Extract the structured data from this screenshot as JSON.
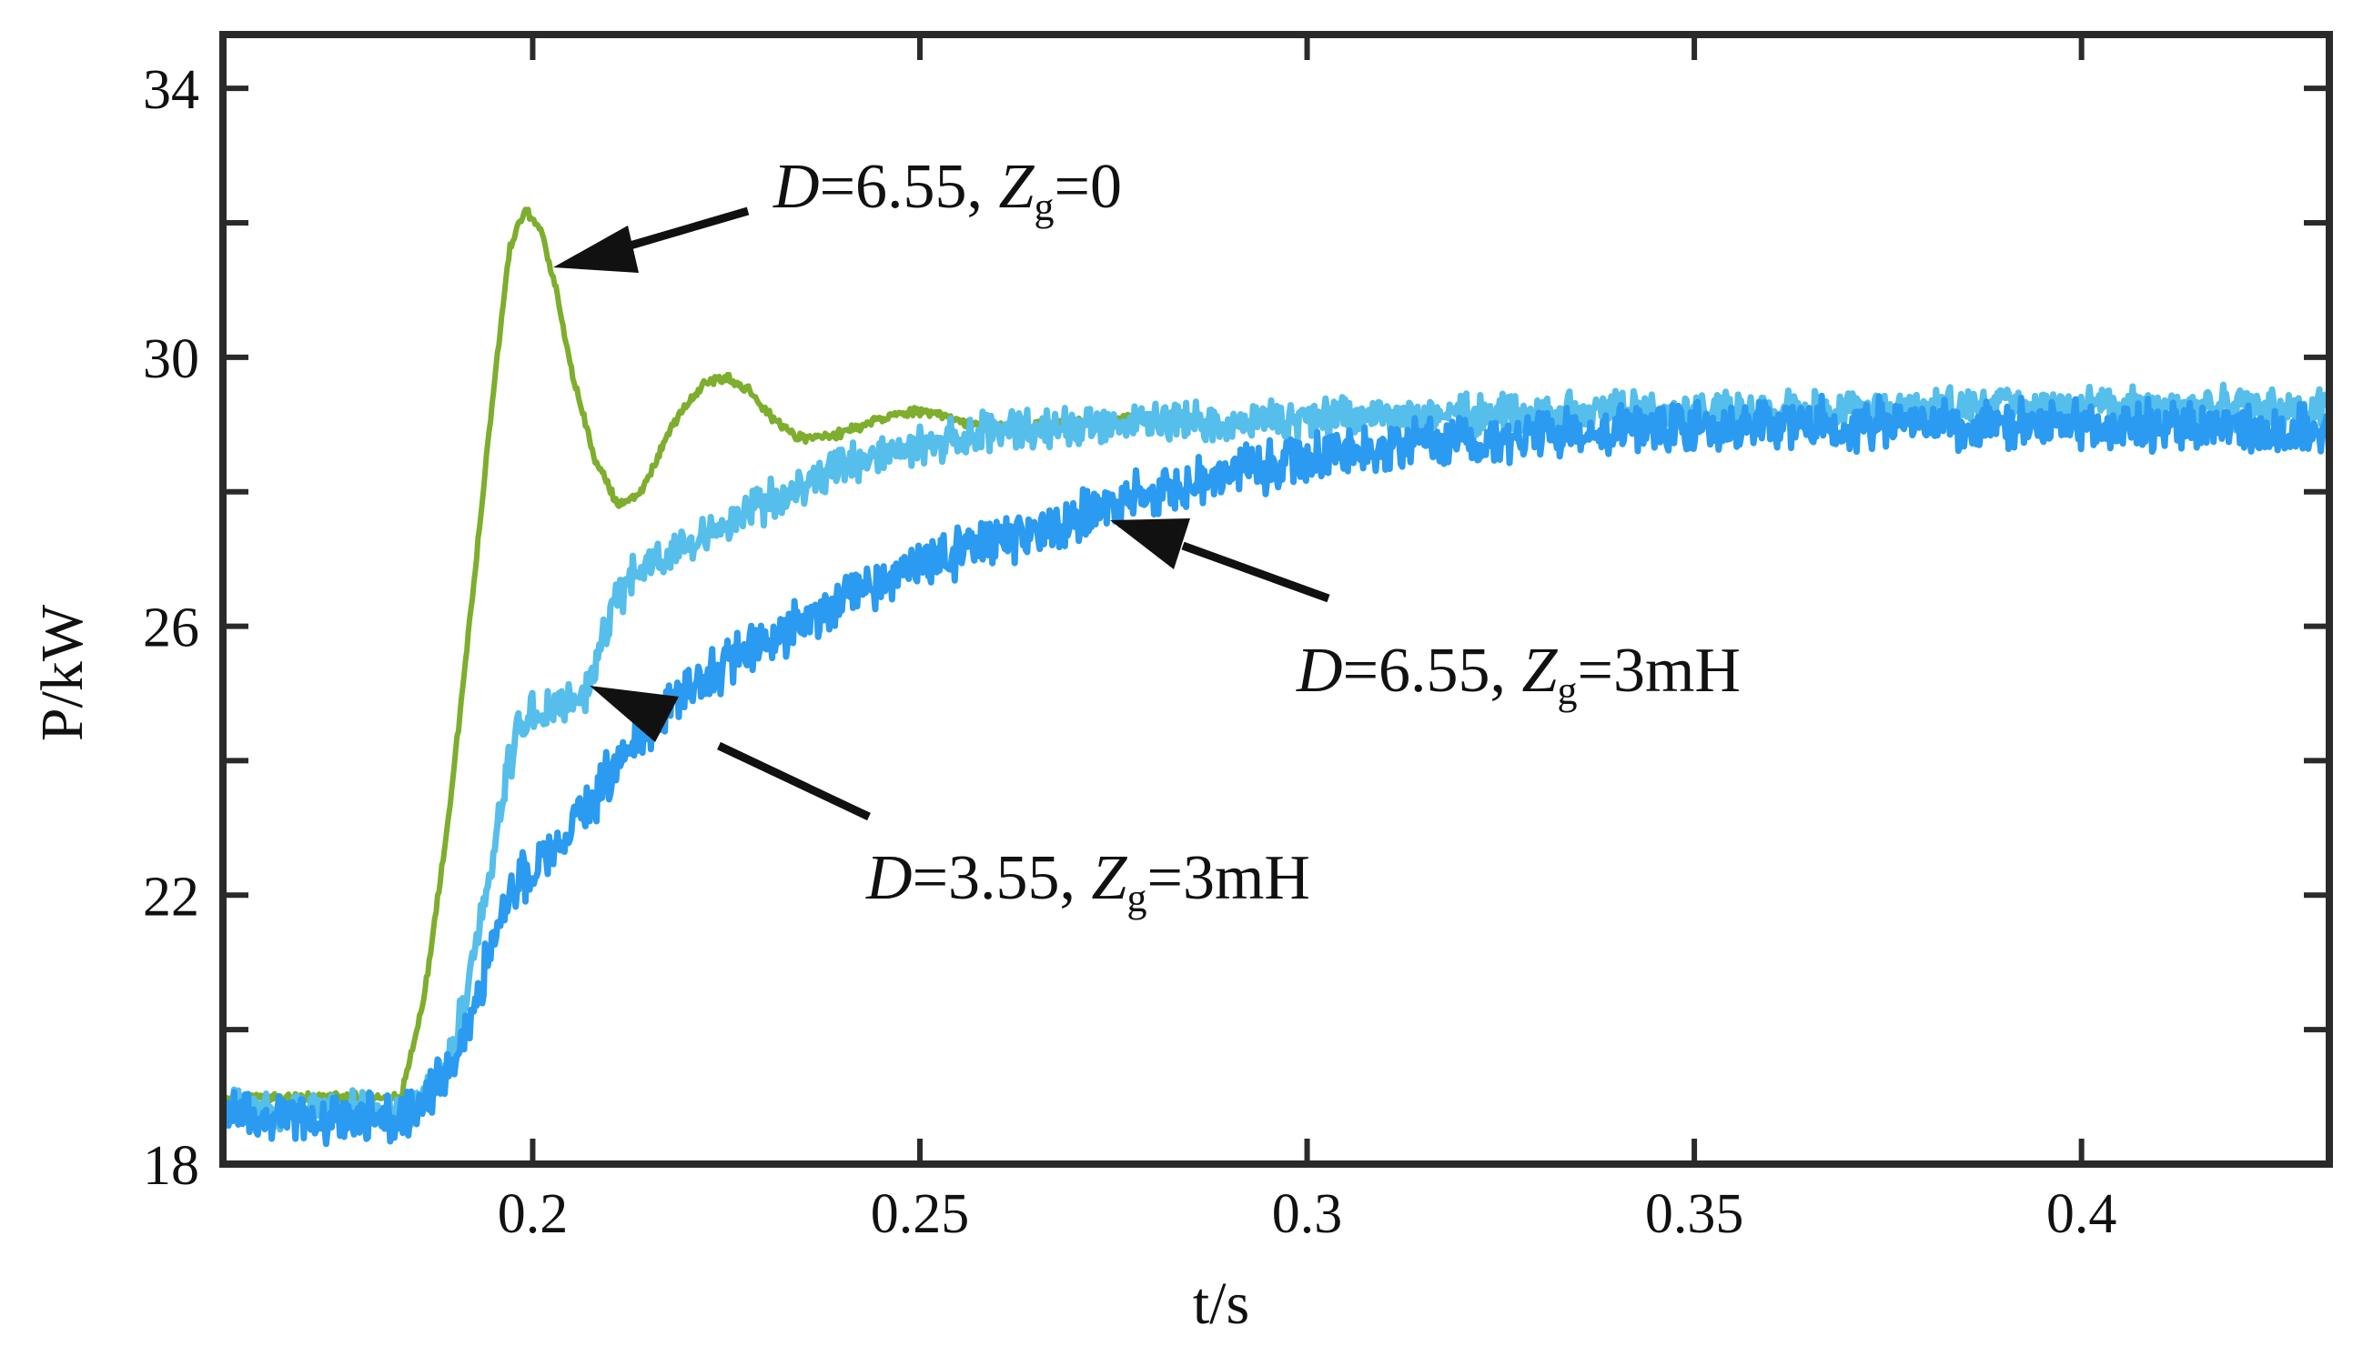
{
  "chart_data": {
    "type": "line",
    "title": "",
    "xlabel": "t/s",
    "ylabel": "P/kW",
    "xlim": [
      0.16,
      0.432
    ],
    "ylim": [
      18,
      34.8
    ],
    "x_ticks": [
      {
        "value": 0.2,
        "label": "0.2"
      },
      {
        "value": 0.25,
        "label": "0.25"
      },
      {
        "value": 0.3,
        "label": "0.3"
      },
      {
        "value": 0.35,
        "label": "0.35"
      },
      {
        "value": 0.4,
        "label": "0.4"
      }
    ],
    "y_ticks": [
      {
        "value": 18,
        "label": "18"
      },
      {
        "value": 20,
        "label": ""
      },
      {
        "value": 22,
        "label": "22"
      },
      {
        "value": 24,
        "label": ""
      },
      {
        "value": 26,
        "label": "26"
      },
      {
        "value": 28,
        "label": ""
      },
      {
        "value": 30,
        "label": "30"
      },
      {
        "value": 32,
        "label": ""
      },
      {
        "value": 34,
        "label": "34"
      }
    ],
    "grid": false,
    "series": [
      {
        "name": "D=6.55, Zg=0",
        "color": "#7DAE2D",
        "noise": 0.05,
        "points": [
          [
            0.16,
            19.0
          ],
          [
            0.183,
            19.0
          ],
          [
            0.186,
            20.5
          ],
          [
            0.189,
            23.0
          ],
          [
            0.192,
            26.2
          ],
          [
            0.195,
            29.6
          ],
          [
            0.197,
            31.6
          ],
          [
            0.199,
            32.2
          ],
          [
            0.201,
            31.9
          ],
          [
            0.203,
            31.0
          ],
          [
            0.205,
            29.8
          ],
          [
            0.208,
            28.5
          ],
          [
            0.211,
            27.8
          ],
          [
            0.214,
            28.0
          ],
          [
            0.218,
            29.0
          ],
          [
            0.222,
            29.6
          ],
          [
            0.225,
            29.7
          ],
          [
            0.228,
            29.5
          ],
          [
            0.231,
            29.1
          ],
          [
            0.234,
            28.8
          ],
          [
            0.238,
            28.8
          ],
          [
            0.243,
            29.0
          ],
          [
            0.248,
            29.2
          ],
          [
            0.252,
            29.15
          ],
          [
            0.256,
            29.0
          ],
          [
            0.262,
            28.95
          ],
          [
            0.27,
            29.05
          ],
          [
            0.28,
            29.1
          ]
        ]
      },
      {
        "name": "D=3.55, Zg=3mH",
        "color": "#55BEEB",
        "noise": 0.22,
        "points": [
          [
            0.16,
            18.8
          ],
          [
            0.185,
            18.8
          ],
          [
            0.19,
            19.8
          ],
          [
            0.194,
            22.0
          ],
          [
            0.197,
            24.0
          ],
          [
            0.199,
            24.7
          ],
          [
            0.204,
            24.8
          ],
          [
            0.207,
            25.0
          ],
          [
            0.21,
            26.2
          ],
          [
            0.214,
            26.9
          ],
          [
            0.22,
            27.2
          ],
          [
            0.23,
            27.8
          ],
          [
            0.24,
            28.4
          ],
          [
            0.25,
            28.7
          ],
          [
            0.26,
            28.9
          ],
          [
            0.275,
            29.0
          ],
          [
            0.3,
            29.1
          ],
          [
            0.35,
            29.2
          ],
          [
            0.4,
            29.3
          ],
          [
            0.432,
            29.2
          ]
        ]
      },
      {
        "name": "D=6.55, Zg=3mH",
        "color": "#2A9BF0",
        "noise": 0.28,
        "points": [
          [
            0.16,
            18.7
          ],
          [
            0.185,
            18.7
          ],
          [
            0.19,
            19.6
          ],
          [
            0.194,
            21.0
          ],
          [
            0.197,
            22.0
          ],
          [
            0.2,
            22.4
          ],
          [
            0.205,
            23.0
          ],
          [
            0.21,
            23.8
          ],
          [
            0.215,
            24.5
          ],
          [
            0.22,
            25.0
          ],
          [
            0.23,
            25.8
          ],
          [
            0.24,
            26.4
          ],
          [
            0.25,
            26.9
          ],
          [
            0.26,
            27.3
          ],
          [
            0.27,
            27.6
          ],
          [
            0.28,
            28.0
          ],
          [
            0.29,
            28.3
          ],
          [
            0.3,
            28.5
          ],
          [
            0.32,
            28.8
          ],
          [
            0.35,
            29.0
          ],
          [
            0.4,
            29.0
          ],
          [
            0.432,
            28.9
          ]
        ]
      }
    ],
    "annotations": [
      {
        "id": "ann-zg0",
        "d_label": "D",
        "eq1": "=6.55, ",
        "z_label": "Z",
        "sub": "g",
        "eq2": "=0",
        "target_x": 0.2005,
        "target_y": 31.0
      },
      {
        "id": "ann-655-3mh",
        "d_label": "D",
        "eq1": "=6.55, ",
        "z_label": "Z",
        "sub": "g",
        "eq2": "=3mH",
        "target_x": 0.2735,
        "target_y": 27.3
      },
      {
        "id": "ann-355-3mh",
        "d_label": "D",
        "eq1": "=3.55, ",
        "z_label": "Z",
        "sub": "g",
        "eq2": "=3mH",
        "target_x": 0.2055,
        "target_y": 25.0
      }
    ]
  }
}
